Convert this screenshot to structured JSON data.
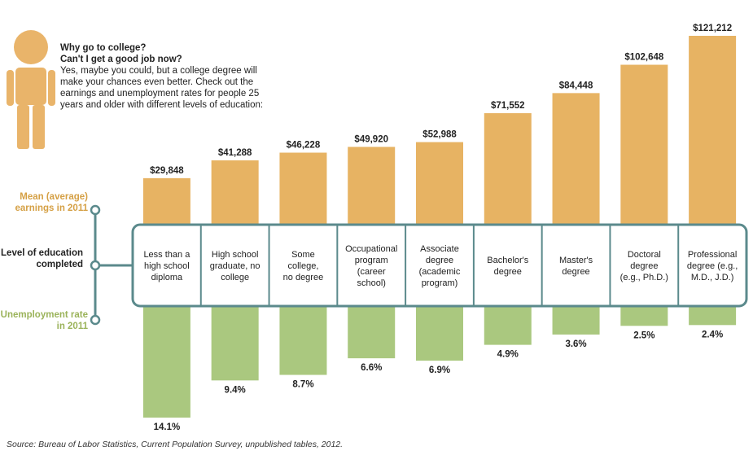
{
  "intro": {
    "question1": "Why go to college?",
    "question2": "Can't I get a good job now?",
    "body": "Yes, maybe you could, but a college degree will make your chances even better. Check out the earnings and unemployment rates for people 25 years and older with different levels of education:"
  },
  "side_labels": {
    "earnings": "Mean (average) earnings in 2011",
    "level": "Level of education completed",
    "unemployment": "Unemployment rate in 2011"
  },
  "source": "Source: Bureau of Labor Statistics, Current Population Survey, unpublished tables, 2012.",
  "colors": {
    "earnings_bar": "#e7b363",
    "unemployment_bar": "#aac87f",
    "box_border": "#5b8a8c",
    "person": "#e9b46a",
    "earnings_text": "#d5a045",
    "unemployment_text": "#9bb35a"
  },
  "chart_data": {
    "type": "bar",
    "categories": [
      [
        "Less than a",
        "high school",
        "diploma"
      ],
      [
        "High school",
        "graduate, no",
        "college"
      ],
      [
        "Some",
        "college,",
        "no degree"
      ],
      [
        "Occupational",
        "program",
        "(career",
        "school)"
      ],
      [
        "Associate",
        "degree",
        "(academic",
        "program)"
      ],
      [
        "Bachelor's",
        "degree"
      ],
      [
        "Master's",
        "degree"
      ],
      [
        "Doctoral",
        "degree",
        "(e.g., Ph.D.)"
      ],
      [
        "Professional",
        "degree (e.g.,",
        "M.D., J.D.)"
      ]
    ],
    "series": [
      {
        "name": "Mean (average) earnings in 2011",
        "values": [
          29848,
          41288,
          46228,
          49920,
          52988,
          71552,
          84448,
          102648,
          121212
        ],
        "labels": [
          "$29,848",
          "$41,288",
          "$46,228",
          "$49,920",
          "$52,988",
          "$71,552",
          "$84,448",
          "$102,648",
          "$121,212"
        ]
      },
      {
        "name": "Unemployment rate in 2011",
        "values": [
          14.1,
          9.4,
          8.7,
          6.6,
          6.9,
          4.9,
          3.6,
          2.5,
          2.4
        ],
        "labels": [
          "14.1%",
          "9.4%",
          "8.7%",
          "6.6%",
          "6.9%",
          "4.9%",
          "3.6%",
          "2.5%",
          "2.4%"
        ]
      }
    ]
  }
}
